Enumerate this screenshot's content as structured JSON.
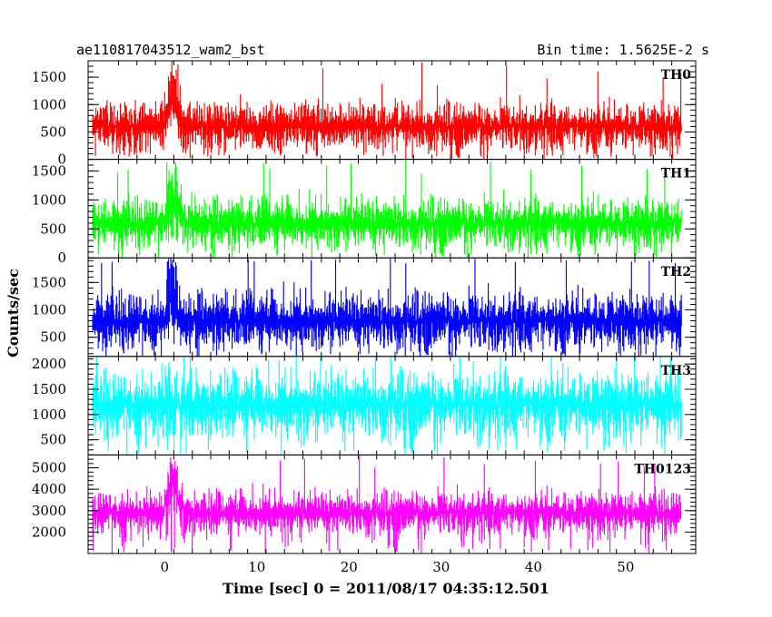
{
  "chart_data": {
    "type": "line",
    "title": "ae110817043512_wam2_bst",
    "subtitle": "Bin time: 1.5625E-2 s",
    "xlabel": "Time [sec] 0 = 2011/08/17 04:35:12.501",
    "ylabel": "Counts/sec",
    "xlim": [
      -8.3,
      57.6
    ],
    "x_ticks": [
      0,
      10,
      20,
      30,
      40,
      50
    ],
    "x_tick_labels": [
      "0",
      "10",
      "20",
      "30",
      "40",
      "50"
    ],
    "data_range": [
      -7.8,
      56.1
    ],
    "bin_time": 0.015625,
    "panels": [
      {
        "name": "TH0",
        "color": "#ff0000",
        "ylim": [
          0,
          1800
        ],
        "y_ticks": [
          0,
          500,
          1000,
          1500
        ],
        "y_tick_labels": [
          "0",
          "500",
          "1000",
          "1500"
        ],
        "baseline_mean": 600,
        "noise_spread": 240,
        "noise_floor_min": 0,
        "typical_peak_max": 1350,
        "burst": {
          "start": -0.1,
          "peak": 0.8,
          "end": 2.1,
          "peak_mean": 1200,
          "peak_max": 1800
        }
      },
      {
        "name": "TH1",
        "color": "#00ff00",
        "ylim": [
          0,
          1700
        ],
        "y_ticks": [
          0,
          500,
          1000,
          1500
        ],
        "y_tick_labels": [
          "0",
          "500",
          "1000",
          "1500"
        ],
        "baseline_mean": 600,
        "noise_spread": 240,
        "noise_floor_min": 0,
        "typical_peak_max": 1450,
        "burst": {
          "start": -0.3,
          "peak": 1.0,
          "end": 2.5,
          "peak_mean": 1050,
          "peak_max": 1700
        }
      },
      {
        "name": "TH2",
        "color": "#0000ff",
        "ylim": [
          150,
          1950
        ],
        "y_ticks": [
          500,
          1000,
          1500
        ],
        "y_tick_labels": [
          "500",
          "1000",
          "1500"
        ],
        "baseline_mean": 800,
        "noise_spread": 290,
        "noise_floor_min": 150,
        "typical_peak_max": 1850,
        "burst": {
          "start": 0.0,
          "peak": 0.7,
          "end": 1.8,
          "peak_mean": 1250,
          "peak_max": 1950
        }
      },
      {
        "name": "TH3",
        "color": "#00ffff",
        "ylim": [
          200,
          2150
        ],
        "y_ticks": [
          500,
          1000,
          1500,
          2000
        ],
        "y_tick_labels": [
          "500",
          "1000",
          "1500",
          "2000"
        ],
        "baseline_mean": 1200,
        "noise_spread": 360,
        "noise_floor_min": 200,
        "typical_peak_max": 2150,
        "burst": {
          "start": 0.0,
          "peak": 0.5,
          "end": 1.0,
          "peak_mean": 1300,
          "peak_max": 2150
        }
      },
      {
        "name": "TH0123",
        "color": "#ff00ff",
        "ylim": [
          1000,
          5600
        ],
        "y_ticks": [
          2000,
          3000,
          4000,
          5000
        ],
        "y_tick_labels": [
          "2000",
          "3000",
          "4000",
          "5000"
        ],
        "baseline_mean": 2900,
        "noise_spread": 560,
        "noise_floor_min": 1000,
        "typical_peak_max": 5000,
        "burst": {
          "start": -0.2,
          "peak": 0.8,
          "end": 2.3,
          "peak_mean": 4400,
          "peak_max": 5600
        }
      }
    ]
  }
}
